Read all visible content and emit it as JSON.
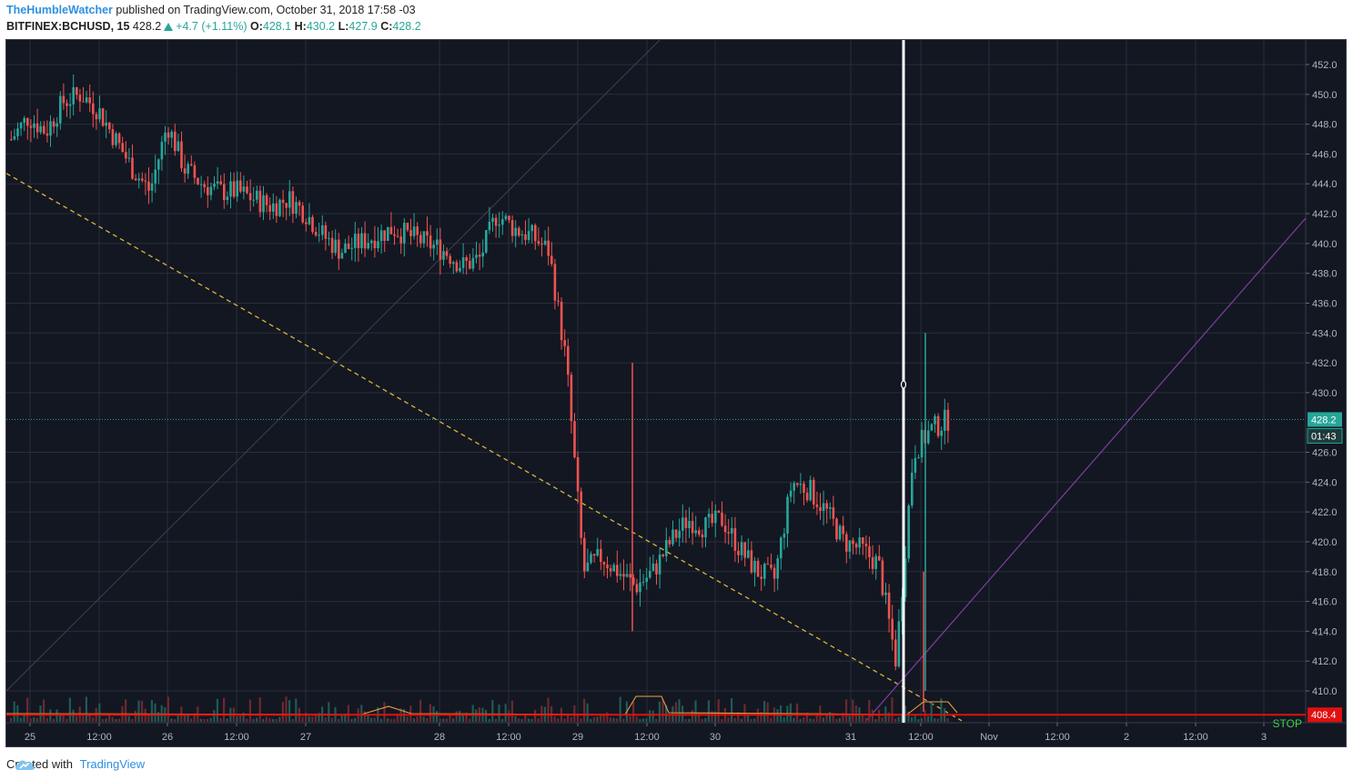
{
  "header": {
    "author": "TheHumbleWatcher",
    "published": "published on TradingView.com, October 31, 2018 17:58 -03",
    "symbol": "BITFINEX:BCHUSD, 15",
    "last": "428.2",
    "change": "+4.7 (+1.11%)",
    "o_label": "O:",
    "o_value": "428.1",
    "h_label": "H:",
    "h_value": "430.2",
    "l_label": "L:",
    "l_value": "427.9",
    "c_label": "C:",
    "c_value": "428.2"
  },
  "footer": {
    "created_with": "Created with",
    "brand": "TradingView"
  },
  "colors": {
    "background": "#131722",
    "grid": "#2a2e39",
    "up": "#26a69a",
    "down": "#ef5350",
    "dashed_trend": "#d9b63a",
    "purple_trend": "#7b3fa0",
    "stop_line": "#e01010",
    "volume_ma": "#e8a03c",
    "price_line": "#26a69a"
  },
  "chart_data": {
    "type": "candlestick",
    "price_axis_labels": [
      "452.0",
      "450.0",
      "448.0",
      "446.0",
      "444.0",
      "442.0",
      "440.0",
      "438.0",
      "436.0",
      "434.0",
      "432.0",
      "430.0",
      "426.0",
      "424.0",
      "422.0",
      "420.0",
      "418.0",
      "416.0",
      "414.0",
      "412.0",
      "410.0"
    ],
    "ylim": [
      408.0,
      452.0
    ],
    "time_labels": [
      "25",
      "12:00",
      "26",
      "12:00",
      "27",
      "28",
      "12:00",
      "29",
      "12:00",
      "30",
      "31",
      "12:00",
      "Nov",
      "12:00",
      "2",
      "12:00",
      "3"
    ],
    "current_price": "428.2",
    "countdown": "01:43",
    "stop_price": "408.4",
    "stop_label": "STOP",
    "approx_path": [
      [
        0,
        447.0
      ],
      [
        1,
        448.5
      ],
      [
        2,
        447.5
      ],
      [
        3,
        449.5
      ],
      [
        4,
        450.0
      ],
      [
        5,
        449.0
      ],
      [
        6,
        447.0
      ],
      [
        7,
        445.0
      ],
      [
        8,
        443.5
      ],
      [
        9,
        448.0
      ],
      [
        10,
        445.0
      ],
      [
        11,
        444.0
      ],
      [
        12,
        443.5
      ],
      [
        13,
        443.5
      ],
      [
        14,
        443.0
      ],
      [
        15,
        442.5
      ],
      [
        16,
        443.0
      ],
      [
        17,
        442.0
      ],
      [
        18,
        440.5
      ],
      [
        19,
        439.5
      ],
      [
        20,
        440.0
      ],
      [
        21,
        440.5
      ],
      [
        22,
        441.0
      ],
      [
        23,
        440.5
      ],
      [
        24,
        440.0
      ],
      [
        25,
        439.5
      ],
      [
        26,
        438.5
      ],
      [
        27,
        439.0
      ],
      [
        28,
        442.0
      ],
      [
        29,
        441.0
      ],
      [
        30,
        440.5
      ],
      [
        31,
        439.5
      ],
      [
        32,
        432.0
      ],
      [
        33,
        418.0
      ],
      [
        34,
        419.0
      ],
      [
        35,
        418.0
      ],
      [
        36,
        417.0
      ],
      [
        37,
        418.0
      ],
      [
        38,
        420.0
      ],
      [
        39,
        421.5
      ],
      [
        40,
        421.0
      ],
      [
        41,
        421.5
      ],
      [
        42,
        419.5
      ],
      [
        43,
        418.0
      ],
      [
        44,
        417.5
      ],
      [
        45,
        424.0
      ],
      [
        46,
        423.5
      ],
      [
        47,
        422.0
      ],
      [
        48,
        420.0
      ],
      [
        49,
        419.5
      ],
      [
        50,
        418.5
      ],
      [
        51,
        412.0
      ],
      [
        52,
        426.0
      ],
      [
        53,
        427.5
      ],
      [
        54,
        428.2
      ]
    ]
  }
}
